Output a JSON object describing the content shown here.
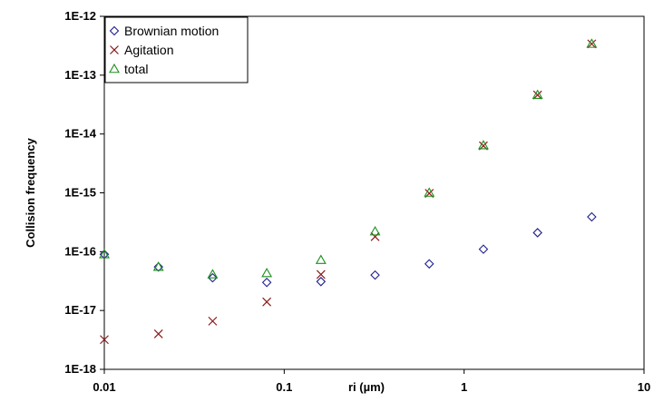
{
  "chart_data": {
    "type": "scatter",
    "xlabel": "ri (µm)",
    "ylabel": "Collision frequency",
    "x_scale": "log",
    "y_scale": "log",
    "xlim": [
      0.01,
      10
    ],
    "ylim": [
      1e-18,
      1e-12
    ],
    "x_ticks": [
      "0.01",
      "0.1",
      "1",
      "10"
    ],
    "y_ticks": [
      "1E-18",
      "1E-17",
      "1E-16",
      "1E-15",
      "1E-14",
      "1E-13",
      "1E-12"
    ],
    "grid": false,
    "legend_position": "top-left",
    "series": [
      {
        "name": "Brownian motion",
        "marker": "diamond",
        "color": "#1f1f8f",
        "x": [
          0.01,
          0.02,
          0.04,
          0.08,
          0.16,
          0.32,
          0.64,
          1.28,
          2.56,
          5.12
        ],
        "y": [
          9e-17,
          5.5e-17,
          3.6e-17,
          3e-17,
          3.1e-17,
          4e-17,
          6.2e-17,
          1.1e-16,
          2.1e-16,
          3.9e-16
        ]
      },
      {
        "name": "Agitation",
        "marker": "x",
        "color": "#8b1a1a",
        "x": [
          0.01,
          0.02,
          0.04,
          0.08,
          0.16,
          0.32,
          0.64,
          1.28,
          2.56,
          5.12
        ],
        "y": [
          3.2e-18,
          4e-18,
          6.6e-18,
          1.4e-17,
          4.1e-17,
          1.8e-16,
          9.8e-16,
          6.3e-15,
          4.6e-14,
          3.4e-13
        ]
      },
      {
        "name": "total",
        "marker": "triangle",
        "color": "#1e8f1e",
        "x": [
          0.01,
          0.02,
          0.04,
          0.08,
          0.16,
          0.32,
          0.64,
          1.28,
          2.56,
          5.12
        ],
        "y": [
          9e-17,
          5.5e-17,
          4.1e-17,
          4.3e-17,
          7.2e-17,
          2.2e-16,
          1e-15,
          6.4e-15,
          4.6e-14,
          3.4e-13
        ]
      }
    ]
  }
}
